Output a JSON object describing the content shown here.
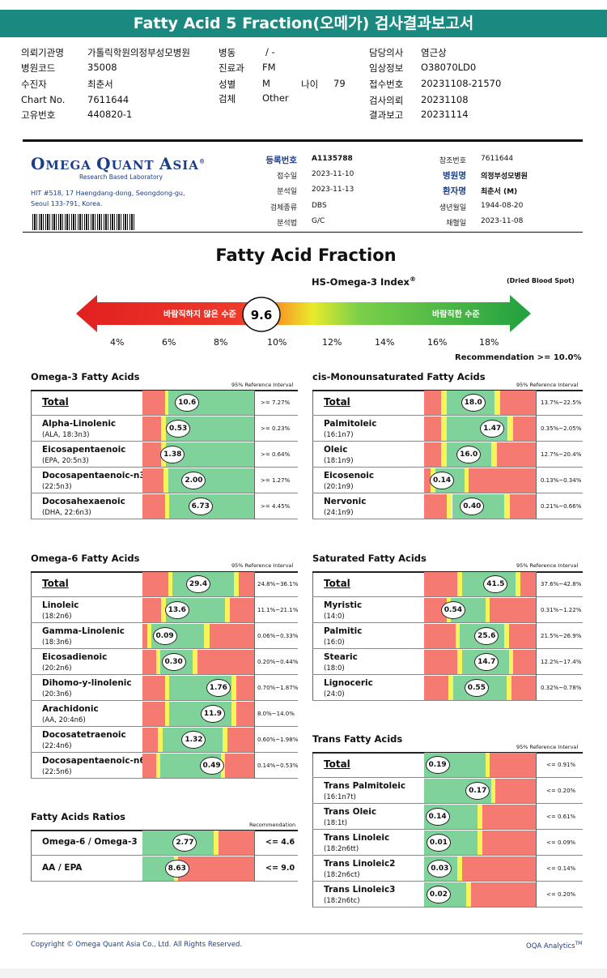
{
  "header": {
    "title": "Fatty Acid 5 Fraction(오메가) 검사결과보고서"
  },
  "patient": [
    {
      "k": "의뢰기관명",
      "v": "가톨릭학원의정부성모병원"
    },
    {
      "k": "병원코드",
      "v": "35008"
    },
    {
      "k": "수진자",
      "v": "최춘서"
    },
    {
      "k": "Chart No.",
      "v": "7611644"
    },
    {
      "k": "고유번호",
      "v": "440820-1"
    },
    {
      "k": "병동",
      "v": "/ -"
    },
    {
      "k": "진료과",
      "v": "FM"
    },
    {
      "k": "성별",
      "v": "M"
    },
    {
      "k": "나이",
      "v": "79"
    },
    {
      "k": "검체",
      "v": "Other"
    },
    {
      "k": "담당의사",
      "v": "염근상"
    },
    {
      "k": "임상정보",
      "v": "O38070LD0"
    },
    {
      "k": "접수번호",
      "v": "20231108-21570"
    },
    {
      "k": "검사의뢰",
      "v": "20231108"
    },
    {
      "k": "결과보고",
      "v": "20231114"
    }
  ],
  "lab": {
    "logo_a": "O",
    "logo_b": "MEGA ",
    "logo_c": "Q",
    "logo_d": "UANT ",
    "logo_e": "A",
    "logo_f": "SIA",
    "reg": "®",
    "subtitle": "Research Based Laboratory",
    "address": "HIT #518, 17 Haengdang-dong, Seongdong-gu, Seoul 133-791, Korea."
  },
  "report": [
    {
      "k": "등록번호",
      "v": "A1135788",
      "b": true
    },
    {
      "k": "접수일",
      "v": "2023-11-10"
    },
    {
      "k": "분석일",
      "v": "2023-11-13"
    },
    {
      "k": "검체종류",
      "v": "DBS"
    },
    {
      "k": "분석법",
      "v": "G/C"
    },
    {
      "k": "참조번호",
      "v": "7611644"
    },
    {
      "k": "병원명",
      "v": "의정부성모병원",
      "b": true
    },
    {
      "k": "환자명",
      "v": "최춘서 (M)",
      "b": true
    },
    {
      "k": "생년월일",
      "v": "1944-08-20"
    },
    {
      "k": "채혈일",
      "v": "2023-11-08"
    }
  ],
  "index": {
    "title": "Fatty Acid Fraction",
    "hs_label": "HS-Omega-3 Index",
    "hs_sup": "®",
    "dbs": "(Dried Blood Spot)",
    "bad": "바람직하지 않은 수준",
    "good": "바람직한 수준",
    "value": "9.6",
    "value_num": 9.6,
    "ticks": [
      "4%",
      "6%",
      "8%",
      "10%",
      "12%",
      "14%",
      "16%",
      "18%"
    ],
    "recommendation": "Recommendation  >= 10.0%"
  },
  "ref_label": "95% Reference Interval",
  "recommendation_label": "Recommendation",
  "panels": {
    "omega3": {
      "title": "Omega-3 Fatty Acids",
      "rows": [
        {
          "name": "Total",
          "total": true,
          "value": "10.6",
          "pos": 0.4,
          "range": ">= 7.27%"
        },
        {
          "name": "Alpha-Linolenic",
          "sub": "(ALA, 18:3n3)",
          "value": "0.53",
          "pos": 0.32,
          "range": ">= 0.23%"
        },
        {
          "name": "Eicosapentaenoic",
          "sub": "(EPA, 20:5n3)",
          "value": "1.38",
          "pos": 0.27,
          "range": ">= 0.64%"
        },
        {
          "name": "Docosapentaenoic-n3",
          "sub": "(22:5n3)",
          "value": "2.00",
          "pos": 0.46,
          "range": ">= 1.27%"
        },
        {
          "name": "Docosahexaenoic",
          "sub": "(DHA, 22:6n3)",
          "value": "6.73",
          "pos": 0.52,
          "range": ">= 4.45%"
        }
      ]
    },
    "cismono": {
      "title": "cis-Monounsaturated Fatty Acids",
      "rows": [
        {
          "name": "Total",
          "total": true,
          "value": "18.0",
          "pos": 0.44,
          "range": "13.7%~22.5%"
        },
        {
          "name": "Palmitoleic",
          "sub": "(16:1n7)",
          "value": "1.47",
          "pos": 0.61,
          "range": "0.35%~2.05%"
        },
        {
          "name": "Oleic",
          "sub": "(18:1n9)",
          "value": "16.0",
          "pos": 0.4,
          "range": "12.7%~20.4%"
        },
        {
          "name": "Eicosenoic",
          "sub": "(20:1n9)",
          "value": "0.14",
          "pos": 0.16,
          "range": "0.13%~0.34%"
        },
        {
          "name": "Nervonic",
          "sub": "(24:1n9)",
          "value": "0.40",
          "pos": 0.43,
          "range": "0.21%~0.66%"
        }
      ]
    },
    "omega6": {
      "title": "Omega-6 Fatty Acids",
      "rows": [
        {
          "name": "Total",
          "total": true,
          "value": "29.4",
          "pos": 0.5,
          "range": "24.8%~36.1%"
        },
        {
          "name": "Linoleic",
          "sub": "(18:2n6)",
          "value": "13.6",
          "pos": 0.31,
          "range": "11.1%~21.1%"
        },
        {
          "name": "Gamma-Linolenic",
          "sub": "(18:3n6)",
          "value": "0.09",
          "pos": 0.2,
          "range": "0.06%~0.33%"
        },
        {
          "name": "Eicosadienoic",
          "sub": "(20:2n6)",
          "value": "0.30",
          "pos": 0.28,
          "range": "0.20%~0.44%"
        },
        {
          "name": "Dihomo-y-linolenic",
          "sub": "(20:3n6)",
          "value": "1.76",
          "pos": 0.68,
          "range": "0.70%~1.87%"
        },
        {
          "name": "Arachidonic",
          "sub": "(AA, 20:4n6)",
          "value": "11.9",
          "pos": 0.63,
          "range": "8.0%~14.0%"
        },
        {
          "name": "Docosatetraenoic",
          "sub": "(22:4n6)",
          "value": "1.32",
          "pos": 0.46,
          "range": "0.60%~1.98%"
        },
        {
          "name": "Docosapentaenoic-n6",
          "sub": "(22:5n6)",
          "value": "0.49",
          "pos": 0.62,
          "range": "0.14%~0.53%"
        }
      ]
    },
    "saturated": {
      "title": "Saturated Fatty Acids",
      "rows": [
        {
          "name": "Total",
          "total": true,
          "value": "41.5",
          "pos": 0.64,
          "range": "37.6%~42.8%"
        },
        {
          "name": "Myristic",
          "sub": "(14:0)",
          "value": "0.54",
          "pos": 0.26,
          "range": "0.31%~1.22%"
        },
        {
          "name": "Palmitic",
          "sub": "(16:0)",
          "value": "25.6",
          "pos": 0.56,
          "range": "21.5%~26.9%"
        },
        {
          "name": "Stearic",
          "sub": "(18:0)",
          "value": "14.7",
          "pos": 0.56,
          "range": "12.2%~17.4%"
        },
        {
          "name": "Lignoceric",
          "sub": "(24:0)",
          "value": "0.55",
          "pos": 0.47,
          "range": "0.32%~0.78%"
        }
      ]
    },
    "trans": {
      "title": "Trans Fatty Acids",
      "rows": [
        {
          "name": "Total",
          "total": true,
          "value": "0.19",
          "pos": 0.12,
          "range": "<= 0.91%"
        },
        {
          "name": "Trans Palmitoleic",
          "sub": "(16:1n7t)",
          "value": "0.17",
          "pos": 0.48,
          "range": "<= 0.20%"
        },
        {
          "name": "Trans Oleic",
          "sub": "(18:1t)",
          "value": "0.14",
          "pos": 0.12,
          "range": "<= 0.61%"
        },
        {
          "name": "Trans Linoleic",
          "sub": "(18:2n6tt)",
          "value": "0.01",
          "pos": 0.13,
          "range": "<= 0.09%"
        },
        {
          "name": "Trans Linoleic2",
          "sub": "(18:2n6ct)",
          "value": "0.03",
          "pos": 0.14,
          "range": "<= 0.14%"
        },
        {
          "name": "Trans Linoleic3",
          "sub": "(18:2n6tc)",
          "value": "0.02",
          "pos": 0.13,
          "range": "<= 0.20%"
        }
      ]
    },
    "ratios": {
      "title": "Fatty Acids Ratios",
      "rows": [
        {
          "name": "Omega-6 / Omega-3",
          "value": "2.77",
          "pos": 0.38,
          "range": "<= 4.6"
        },
        {
          "name": "AA / EPA",
          "value": "8.63",
          "pos": 0.31,
          "range": "<= 9.0"
        }
      ]
    }
  },
  "footer": {
    "copyright": "Copyright © Omega Quant Asia Co., Ltd.  All Rights Reserved.",
    "brand": "OQA Analytics",
    "tm": "TM"
  },
  "colors": {
    "green": "#7fd39a",
    "red": "#f47a72",
    "yellow": "#f5f55a",
    "header": "#1a8a80",
    "navy": "#1c3e86"
  }
}
